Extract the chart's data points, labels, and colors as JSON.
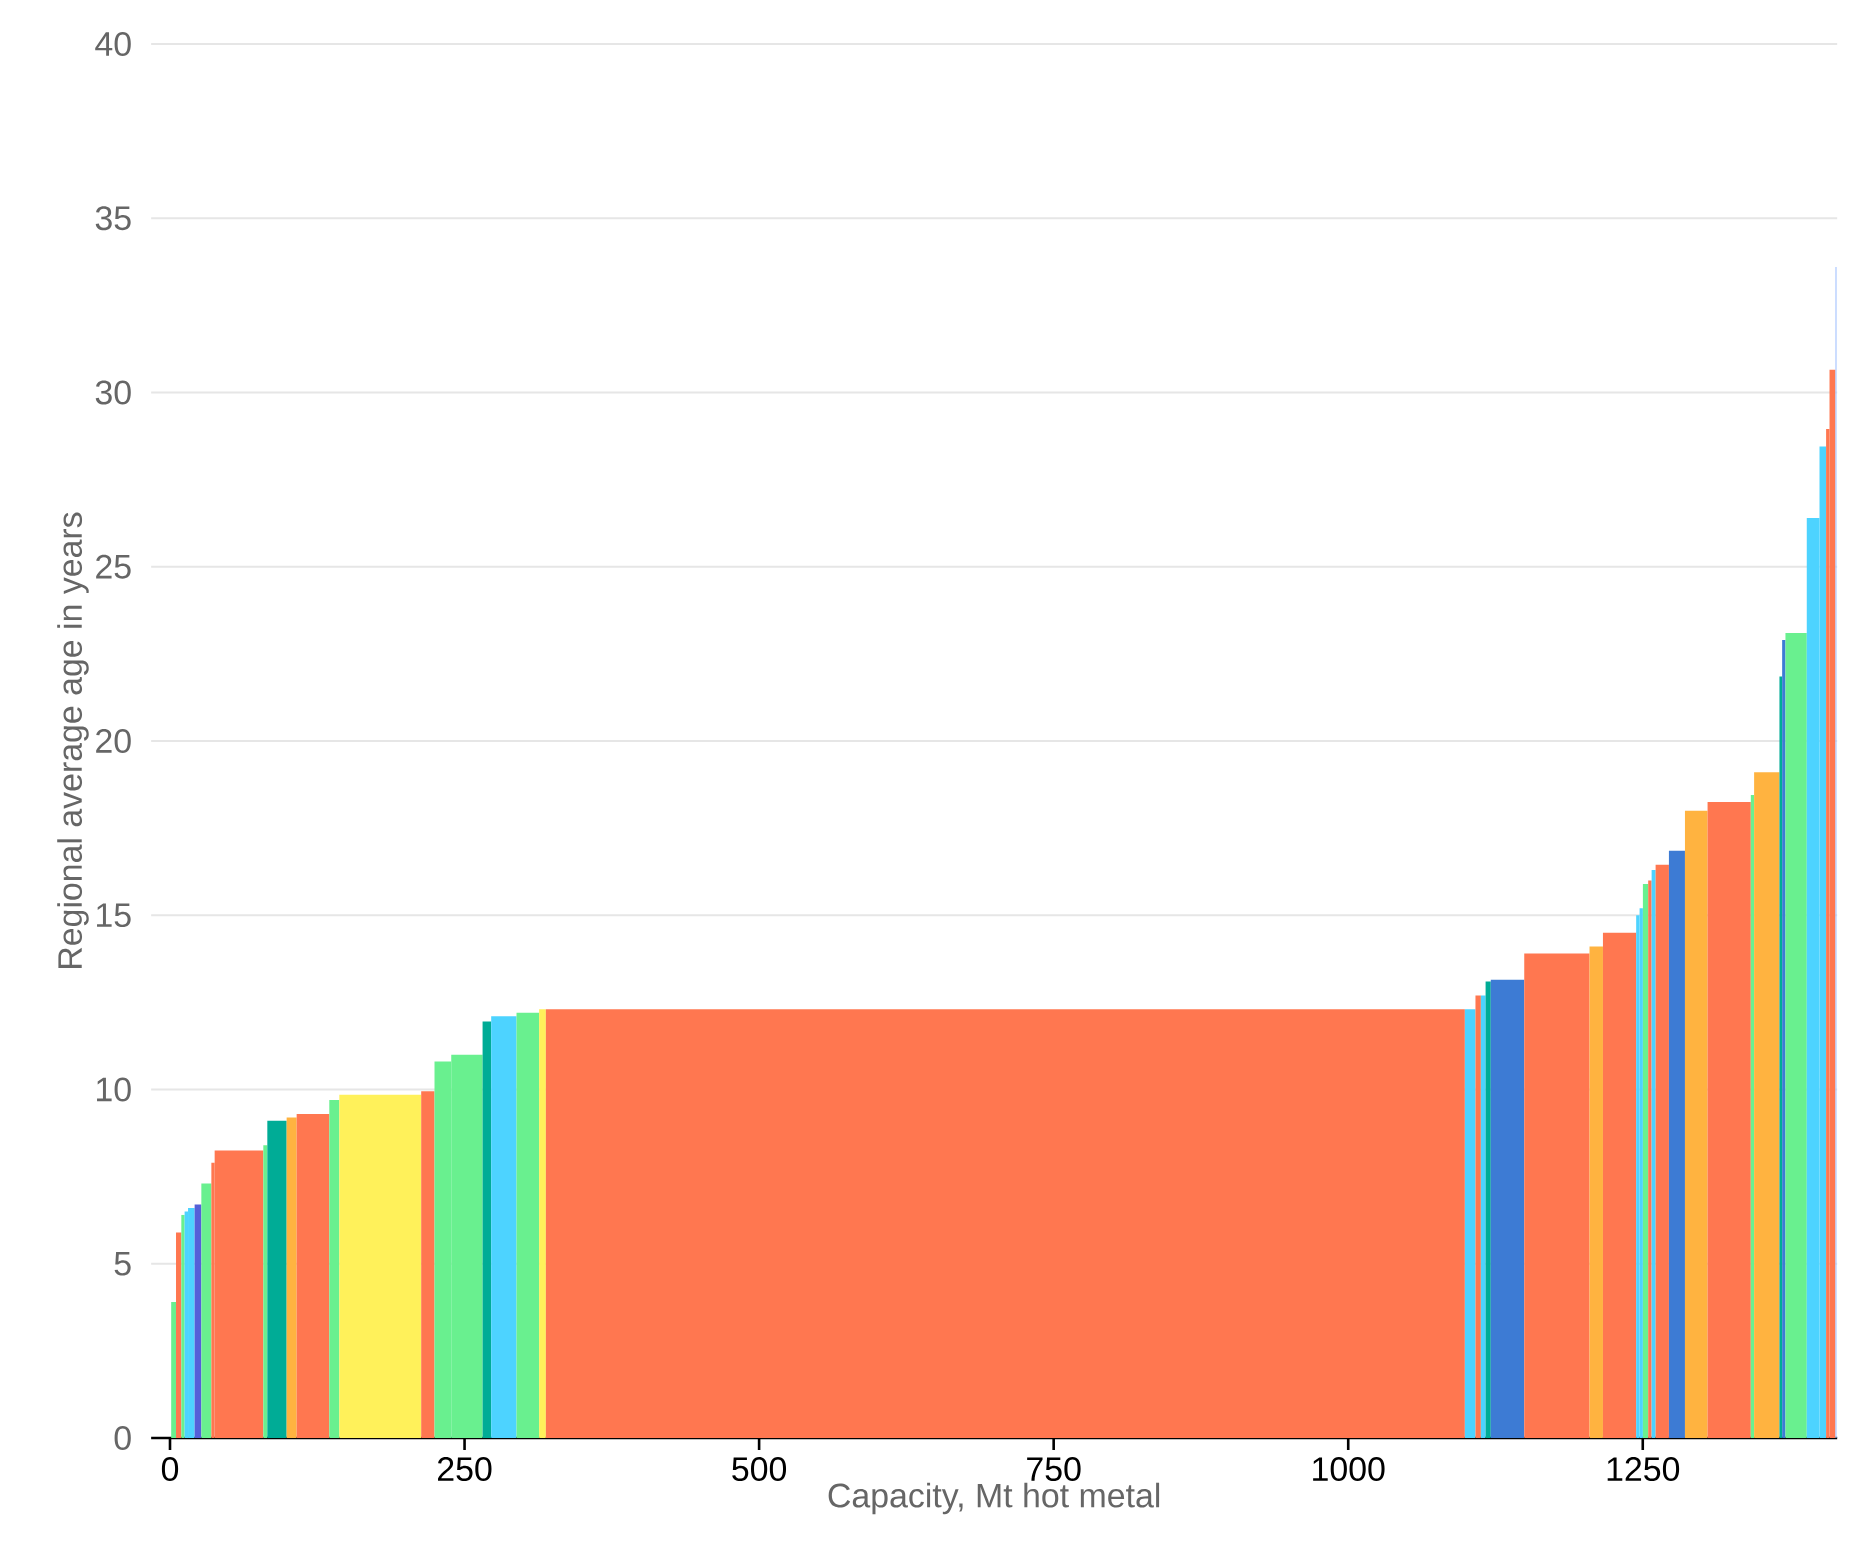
{
  "chart_data": {
    "type": "histogram",
    "xlabel": "Capacity, Mt hot metal",
    "ylabel": "Regional average age in years",
    "bins": [
      1,
      5.1,
      9.6,
      12.4,
      15.3,
      20.9,
      26.6,
      35.1,
      37.9,
      79.2,
      82.6,
      99,
      107.5,
      135.2,
      143.7,
      213.2,
      224.5,
      238.7,
      265.3,
      272.6,
      294.1,
      313.3,
      319,
      1099,
      1108,
      1112.6,
      1116.6,
      1121,
      1149.4,
      1204.8,
      1216.2,
      1244.4,
      1247.3,
      1250.1,
      1254.6,
      1257.5,
      1260.9,
      1272.2,
      1285.8,
      1305,
      1341.7,
      1344.5,
      1366,
      1368.3,
      1371.1,
      1389.2,
      1400,
      1405.6,
      1408.5,
      1413.5,
      1414.5
    ],
    "values": [
      3.9,
      5.9,
      6.4,
      6.5,
      6.6,
      6.7,
      7.3,
      7.9,
      8.25,
      8.4,
      9.1,
      9.2,
      9.3,
      9.7,
      9.85,
      9.95,
      10.8,
      11.0,
      11.95,
      12.1,
      12.2,
      12.3,
      12.3,
      12.3,
      12.7,
      12.7,
      13.1,
      13.15,
      13.9,
      14.1,
      14.5,
      15.0,
      15.2,
      15.9,
      16.0,
      16.3,
      16.45,
      16.85,
      18.0,
      18.25,
      18.45,
      19.1,
      21.85,
      22.9,
      23.1,
      26.4,
      28.45,
      28.95,
      30.65,
      33.6
    ],
    "colors": [
      "#69f08f",
      "#ff7750",
      "#69f08f",
      "#4dd3ff",
      "#4dd3ff",
      "#5560d8",
      "#69f08f",
      "#ff7750",
      "#ff7750",
      "#69f08f",
      "#00ac96",
      "#ffb340",
      "#ff7750",
      "#69f08f",
      "#fff15a",
      "#ff7750",
      "#69f08f",
      "#69f08f",
      "#00ac96",
      "#4dd3ff",
      "#69f08f",
      "#fff15a",
      "#ff7750",
      "#4dd3ff",
      "#ff7750",
      "#4dd3ff",
      "#00ac96",
      "#3d7bd4",
      "#ff7750",
      "#ffb340",
      "#ff7750",
      "#4dd3ff",
      "#4dd3ff",
      "#69f08f",
      "#ff7750",
      "#4dd3ff",
      "#ff7750",
      "#3d7bd4",
      "#ffb340",
      "#ff7750",
      "#69f08f",
      "#ffb340",
      "#00ac96",
      "#3d7bd4",
      "#69f08f",
      "#4dd3ff",
      "#4dd3ff",
      "#ff7750",
      "#ff7750",
      "#a9c6ff"
    ],
    "xlim": [
      -16,
      1415
    ],
    "ylim": [
      0,
      40
    ],
    "xticks": [
      0,
      250,
      500,
      750,
      1000,
      1250
    ],
    "yticks": [
      0,
      5,
      10,
      15,
      20,
      25,
      30,
      35,
      40
    ],
    "grid": "y"
  }
}
